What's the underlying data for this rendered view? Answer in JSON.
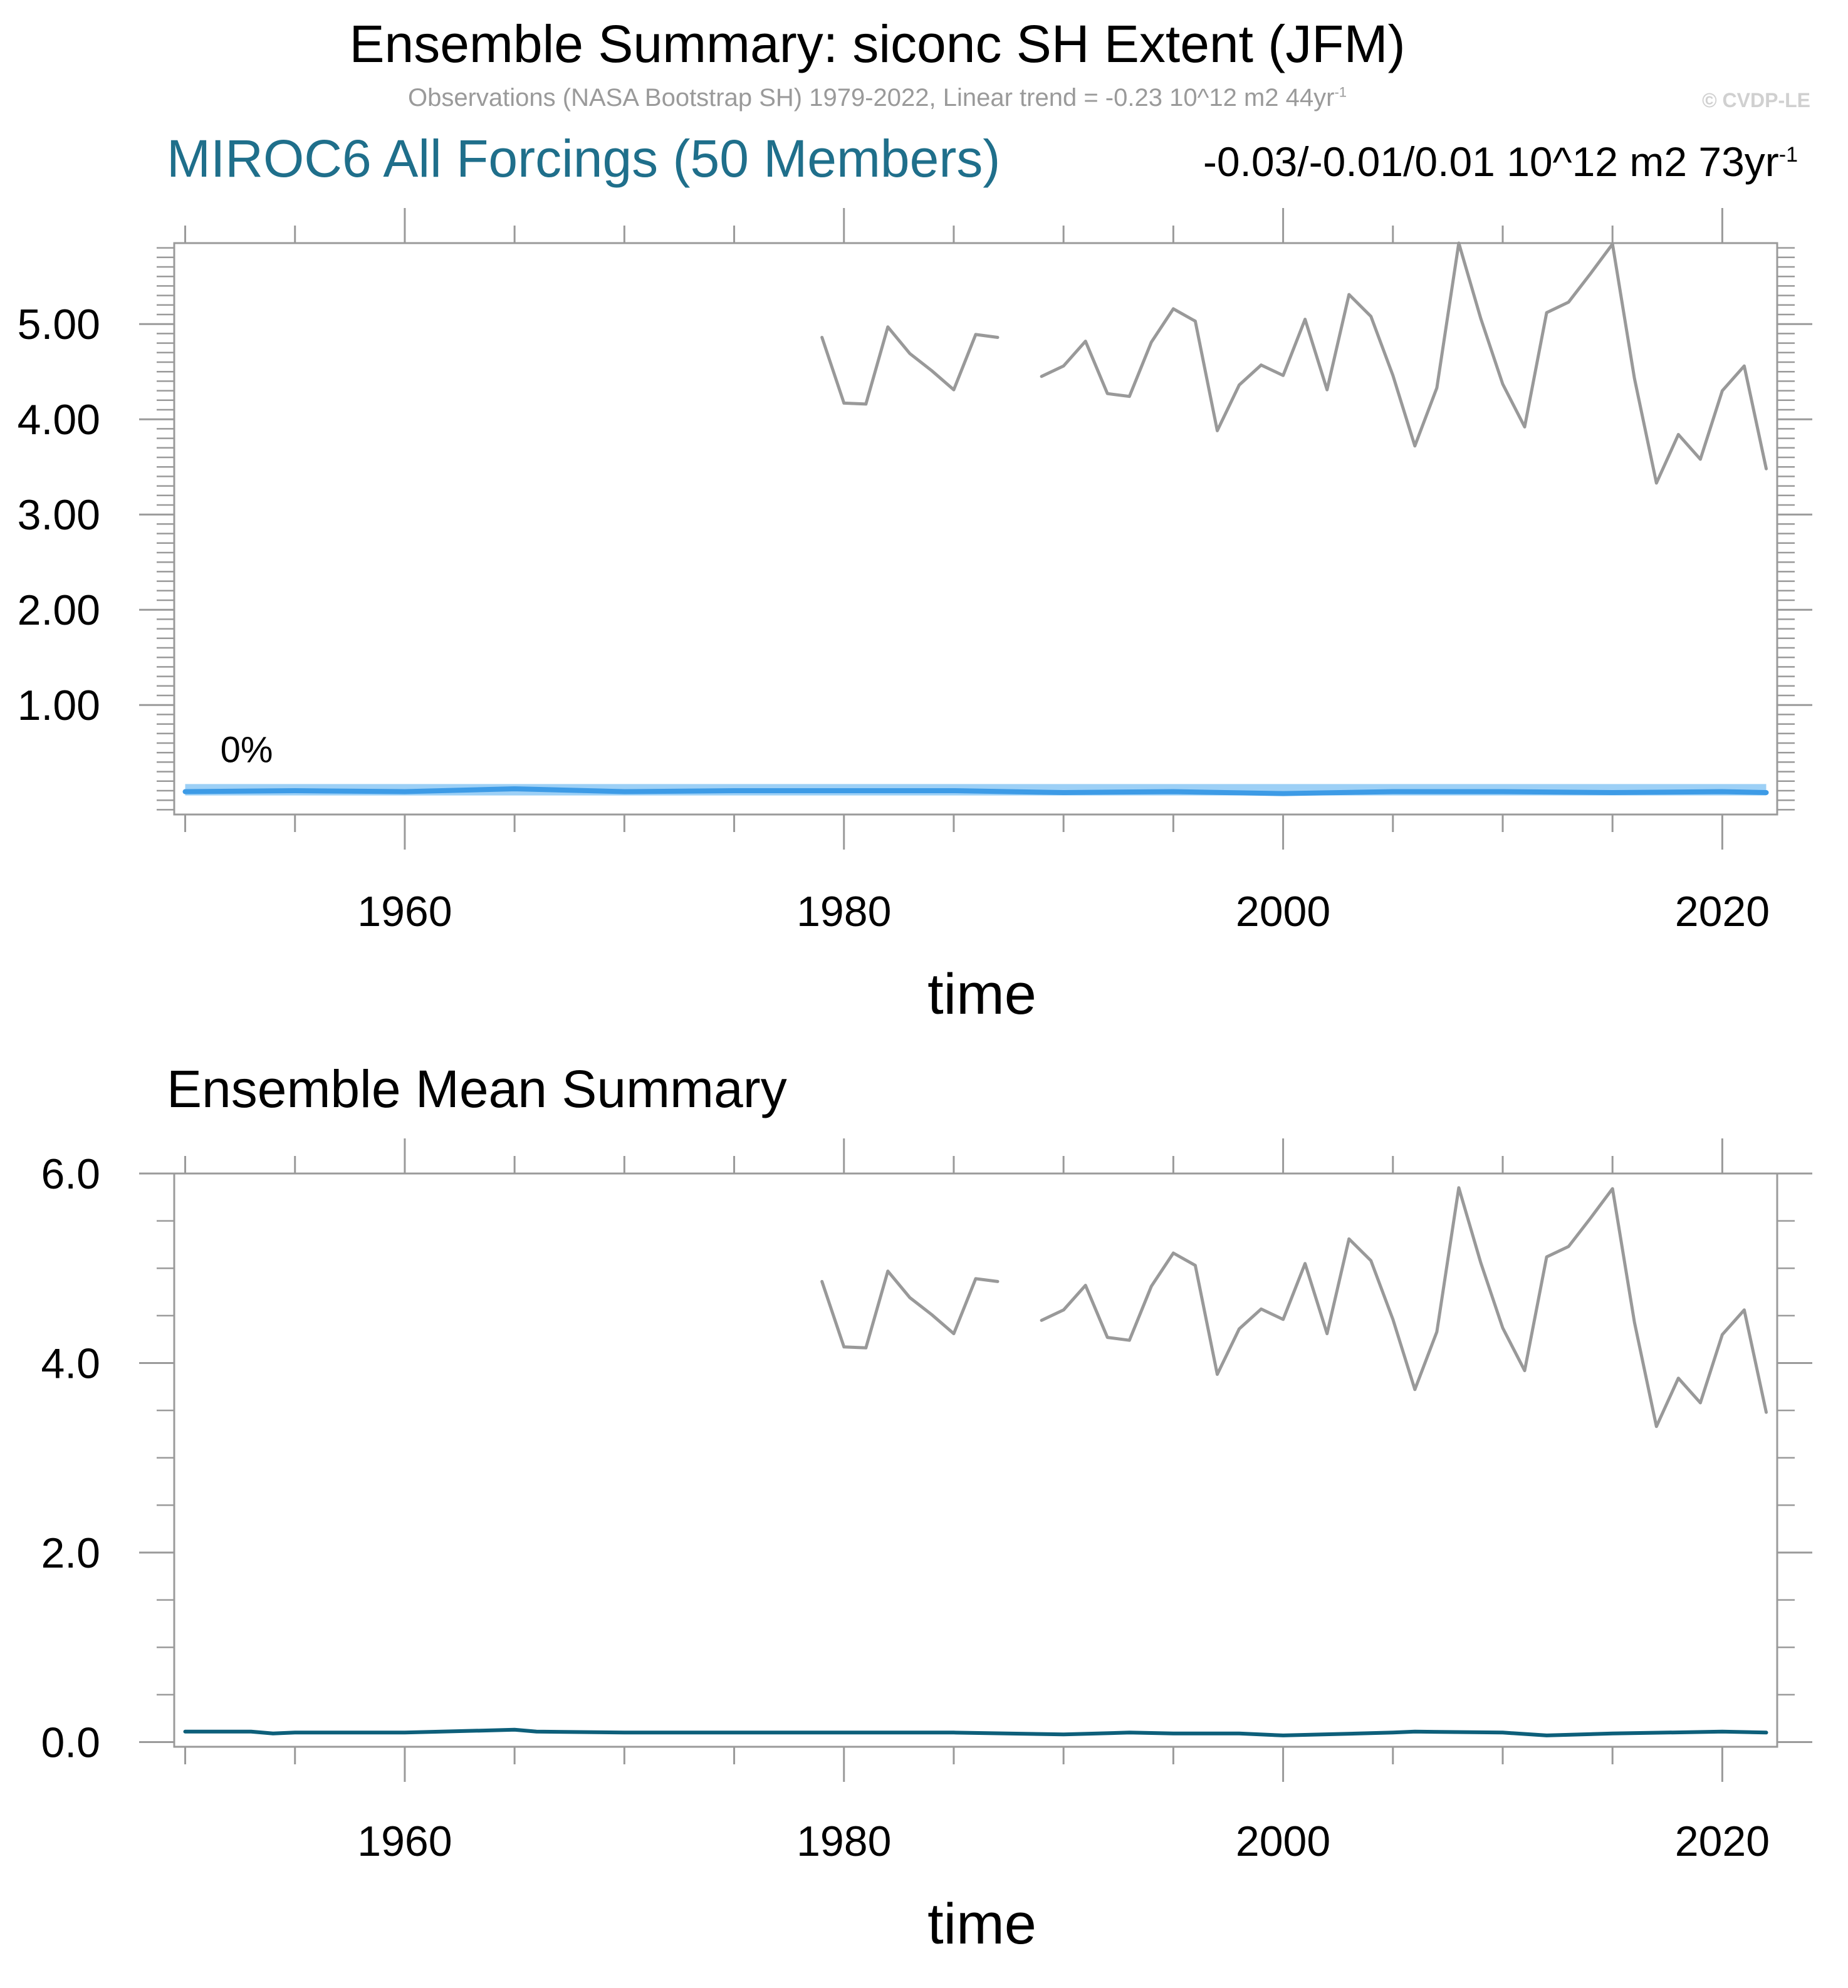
{
  "title": "Ensemble Summary: siconc SH Extent (JFM)",
  "subtitle": {
    "text": "Observations (NASA Bootstrap SH) 1979-2022, Linear trend = -0.23 10^12 m2 44yr",
    "superscript": "-1"
  },
  "copyright": "© CVDP-LE",
  "colors": {
    "observations": "#999999",
    "ensemble_band": "#8cc8f5",
    "ensemble_members": "#3d9be6",
    "ensemble_mean": "#0d5f7a",
    "panel1_left_title": "#1f6f8b"
  },
  "chart_data": [
    {
      "type": "line",
      "left_title": "MIROC6 All Forcings (50 Members)",
      "right_title": "-0.03/-0.01/0.01 10^12 m2 73yr",
      "right_title_superscript": "-1",
      "annotation": "0%",
      "xlabel": "time",
      "ylabel": "",
      "xlim": [
        1949.5,
        2022.5
      ],
      "ylim": [
        -0.15,
        5.85
      ],
      "xticks": [
        1960,
        1980,
        2000,
        2020
      ],
      "yticks": [
        1.0,
        2.0,
        3.0,
        4.0,
        5.0
      ],
      "ytick_labels": [
        "1.00",
        "2.00",
        "3.00",
        "4.00",
        "5.00"
      ],
      "series": [
        {
          "name": "Observations",
          "x": [
            1979,
            1980,
            1981,
            1982,
            1983,
            1984,
            1985,
            1986,
            1987,
            1988,
            1989,
            1990,
            1991,
            1992,
            1993,
            1994,
            1995,
            1996,
            1997,
            1998,
            1999,
            2000,
            2001,
            2002,
            2003,
            2004,
            2005,
            2006,
            2007,
            2008,
            2009,
            2010,
            2011,
            2012,
            2013,
            2014,
            2015,
            2016,
            2017,
            2018,
            2019,
            2020,
            2021,
            2022
          ],
          "values": [
            4.86,
            4.17,
            4.16,
            4.97,
            4.69,
            4.51,
            4.31,
            4.89,
            4.86,
            null,
            4.45,
            4.56,
            4.82,
            4.27,
            4.24,
            4.81,
            5.16,
            5.03,
            3.88,
            4.36,
            4.57,
            4.46,
            5.05,
            4.31,
            5.31,
            5.08,
            4.46,
            3.72,
            4.33,
            5.85,
            5.06,
            4.37,
            3.92,
            5.12,
            5.23,
            5.53,
            5.84,
            4.43,
            3.33,
            3.84,
            3.58,
            4.3,
            4.56,
            3.48
          ]
        },
        {
          "name": "Ensemble range",
          "x": [
            1950,
            2022
          ],
          "min": [
            0.05,
            0.05
          ],
          "max": [
            0.17,
            0.17
          ]
        },
        {
          "name": "Ensemble median",
          "x": [
            1950,
            1955,
            1960,
            1965,
            1970,
            1975,
            1980,
            1985,
            1990,
            1995,
            2000,
            2005,
            2010,
            2015,
            2020,
            2022
          ],
          "values": [
            0.09,
            0.1,
            0.09,
            0.12,
            0.09,
            0.1,
            0.1,
            0.1,
            0.08,
            0.09,
            0.07,
            0.09,
            0.09,
            0.08,
            0.09,
            0.08
          ]
        }
      ]
    },
    {
      "type": "line",
      "left_title": "Ensemble Mean Summary",
      "xlabel": "time",
      "ylabel": "",
      "xlim": [
        1949.5,
        2022.5
      ],
      "ylim": [
        -0.05,
        6.0
      ],
      "xticks": [
        1960,
        1980,
        2000,
        2020
      ],
      "yticks": [
        0.0,
        2.0,
        4.0,
        6.0
      ],
      "ytick_labels": [
        "0.0",
        "2.0",
        "4.0",
        "6.0"
      ],
      "series": [
        {
          "name": "Observations",
          "x": [
            1979,
            1980,
            1981,
            1982,
            1983,
            1984,
            1985,
            1986,
            1987,
            1988,
            1989,
            1990,
            1991,
            1992,
            1993,
            1994,
            1995,
            1996,
            1997,
            1998,
            1999,
            2000,
            2001,
            2002,
            2003,
            2004,
            2005,
            2006,
            2007,
            2008,
            2009,
            2010,
            2011,
            2012,
            2013,
            2014,
            2015,
            2016,
            2017,
            2018,
            2019,
            2020,
            2021,
            2022
          ],
          "values": [
            4.86,
            4.17,
            4.16,
            4.97,
            4.69,
            4.51,
            4.31,
            4.89,
            4.86,
            null,
            4.45,
            4.56,
            4.82,
            4.27,
            4.24,
            4.81,
            5.16,
            5.03,
            3.88,
            4.36,
            4.57,
            4.46,
            5.05,
            4.31,
            5.31,
            5.08,
            4.46,
            3.72,
            4.33,
            5.85,
            5.06,
            4.37,
            3.92,
            5.12,
            5.23,
            5.53,
            5.84,
            4.43,
            3.33,
            3.84,
            3.58,
            4.3,
            4.56,
            3.48
          ]
        },
        {
          "name": "Ensemble mean",
          "x": [
            1950,
            1953,
            1954,
            1955,
            1960,
            1965,
            1966,
            1970,
            1975,
            1980,
            1985,
            1990,
            1993,
            1995,
            1998,
            2000,
            2005,
            2006,
            2010,
            2012,
            2015,
            2020,
            2022
          ],
          "values": [
            0.11,
            0.11,
            0.09,
            0.1,
            0.1,
            0.13,
            0.11,
            0.1,
            0.1,
            0.1,
            0.1,
            0.08,
            0.1,
            0.09,
            0.09,
            0.07,
            0.1,
            0.11,
            0.1,
            0.07,
            0.09,
            0.11,
            0.1
          ]
        }
      ]
    }
  ]
}
